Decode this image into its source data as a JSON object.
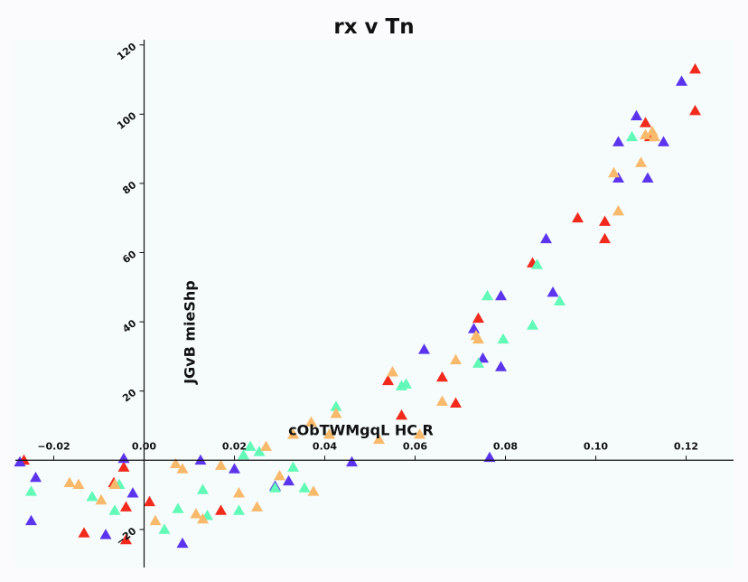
{
  "chart_data": {
    "type": "scatter",
    "title": "rx v Tn",
    "xlabel": "cObTWMgqL HC R",
    "ylabel": "JGvB  mieShp",
    "xlim": [
      -0.0285,
      0.1305
    ],
    "ylim": [
      -31,
      121.5
    ],
    "xticks": [
      -0.02,
      0.0,
      0.02,
      0.04,
      0.06,
      0.08,
      0.1,
      0.12
    ],
    "xtick_labels": [
      "−0.02",
      "0.00",
      "0.02",
      "0.04",
      "0.06",
      "0.08",
      "0.10",
      "0.12"
    ],
    "yticks": [
      -20,
      20,
      40,
      60,
      80,
      100,
      120
    ],
    "ytick_labels": [
      "−20",
      "20",
      "40",
      "60",
      "80",
      "100",
      "120"
    ],
    "grid": false,
    "marker": "triangle",
    "series": [
      {
        "color": "#f22a1c",
        "points": [
          [
            -0.0266,
            0.0
          ],
          [
            -0.0133,
            -21.0
          ],
          [
            -0.0067,
            -6.5
          ],
          [
            -0.004,
            -23.0
          ],
          [
            -0.004,
            -13.5
          ],
          [
            -0.0045,
            -2.0
          ],
          [
            0.0012,
            -12.0
          ],
          [
            0.017,
            -14.5
          ],
          [
            0.054,
            23.0
          ],
          [
            0.057,
            13.0
          ],
          [
            0.066,
            24.0
          ],
          [
            0.069,
            16.5
          ],
          [
            0.074,
            41.0
          ],
          [
            0.086,
            57.0
          ],
          [
            0.096,
            70.0
          ],
          [
            0.102,
            64.0
          ],
          [
            0.102,
            69.0
          ],
          [
            0.111,
            97.5
          ],
          [
            0.112,
            93.5
          ],
          [
            0.122,
            113.0
          ],
          [
            0.122,
            101.0
          ]
        ]
      },
      {
        "color": "#5c34ee",
        "points": [
          [
            -0.0275,
            -0.5
          ],
          [
            -0.024,
            -5.0
          ],
          [
            -0.025,
            -17.5
          ],
          [
            -0.0085,
            -21.5
          ],
          [
            -0.0045,
            0.5
          ],
          [
            -0.0025,
            -9.5
          ],
          [
            0.0085,
            -24.0
          ],
          [
            0.0125,
            0.0
          ],
          [
            0.02,
            -2.5
          ],
          [
            0.029,
            -7.5
          ],
          [
            0.032,
            -6.0
          ],
          [
            0.046,
            -0.5
          ],
          [
            0.062,
            32.0
          ],
          [
            0.073,
            38.0
          ],
          [
            0.075,
            29.5
          ],
          [
            0.0765,
            0.8
          ],
          [
            0.079,
            27.0
          ],
          [
            0.079,
            47.5
          ],
          [
            0.089,
            64.0
          ],
          [
            0.0905,
            48.5
          ],
          [
            0.105,
            92.0
          ],
          [
            0.105,
            81.5
          ],
          [
            0.109,
            99.5
          ],
          [
            0.1115,
            81.5
          ],
          [
            0.115,
            92.0
          ],
          [
            0.119,
            109.5
          ]
        ]
      },
      {
        "color": "#61fab7",
        "points": [
          [
            -0.025,
            -9.0
          ],
          [
            -0.0115,
            -10.5
          ],
          [
            -0.0065,
            -14.5
          ],
          [
            -0.0055,
            -7.0
          ],
          [
            0.0045,
            -20.0
          ],
          [
            0.0075,
            -14.0
          ],
          [
            0.013,
            -8.5
          ],
          [
            0.014,
            -16.0
          ],
          [
            0.021,
            -14.5
          ],
          [
            0.022,
            1.5
          ],
          [
            0.0235,
            4.0
          ],
          [
            0.0255,
            2.5
          ],
          [
            0.029,
            -8.0
          ],
          [
            0.033,
            -2.0
          ],
          [
            0.0355,
            -8.0
          ],
          [
            0.0425,
            15.5
          ],
          [
            0.057,
            21.5
          ],
          [
            0.058,
            22.0
          ],
          [
            0.074,
            28.0
          ],
          [
            0.076,
            47.5
          ],
          [
            0.0795,
            35.0
          ],
          [
            0.086,
            39.0
          ],
          [
            0.087,
            56.5
          ],
          [
            0.092,
            46.0
          ],
          [
            0.108,
            93.5
          ]
        ]
      },
      {
        "color": "#f9b96a",
        "points": [
          [
            -0.0165,
            -6.5
          ],
          [
            -0.0145,
            -7.0
          ],
          [
            -0.0095,
            -11.5
          ],
          [
            -0.0065,
            -7.0
          ],
          [
            0.0025,
            -17.5
          ],
          [
            0.007,
            -1.0
          ],
          [
            0.0085,
            -2.5
          ],
          [
            0.0115,
            -15.5
          ],
          [
            0.013,
            -17.0
          ],
          [
            0.017,
            -1.5
          ],
          [
            0.021,
            -9.5
          ],
          [
            0.025,
            -13.5
          ],
          [
            0.027,
            4.0
          ],
          [
            0.03,
            -4.5
          ],
          [
            0.033,
            7.5
          ],
          [
            0.037,
            11.0
          ],
          [
            0.0375,
            -9.0
          ],
          [
            0.041,
            7.5
          ],
          [
            0.0425,
            13.5
          ],
          [
            0.052,
            6.0
          ],
          [
            0.055,
            25.5
          ],
          [
            0.061,
            7.5
          ],
          [
            0.066,
            17.0
          ],
          [
            0.069,
            29.0
          ],
          [
            0.0735,
            36.0
          ],
          [
            0.074,
            35.0
          ],
          [
            0.104,
            83.0
          ],
          [
            0.105,
            72.0
          ],
          [
            0.11,
            86.0
          ],
          [
            0.111,
            94.0
          ],
          [
            0.1125,
            95.0
          ],
          [
            0.113,
            93.5
          ]
        ]
      }
    ]
  },
  "colors": {
    "page_background": "#fbfafd",
    "plot_background": "#f5fcfb",
    "axis": "#111111"
  }
}
